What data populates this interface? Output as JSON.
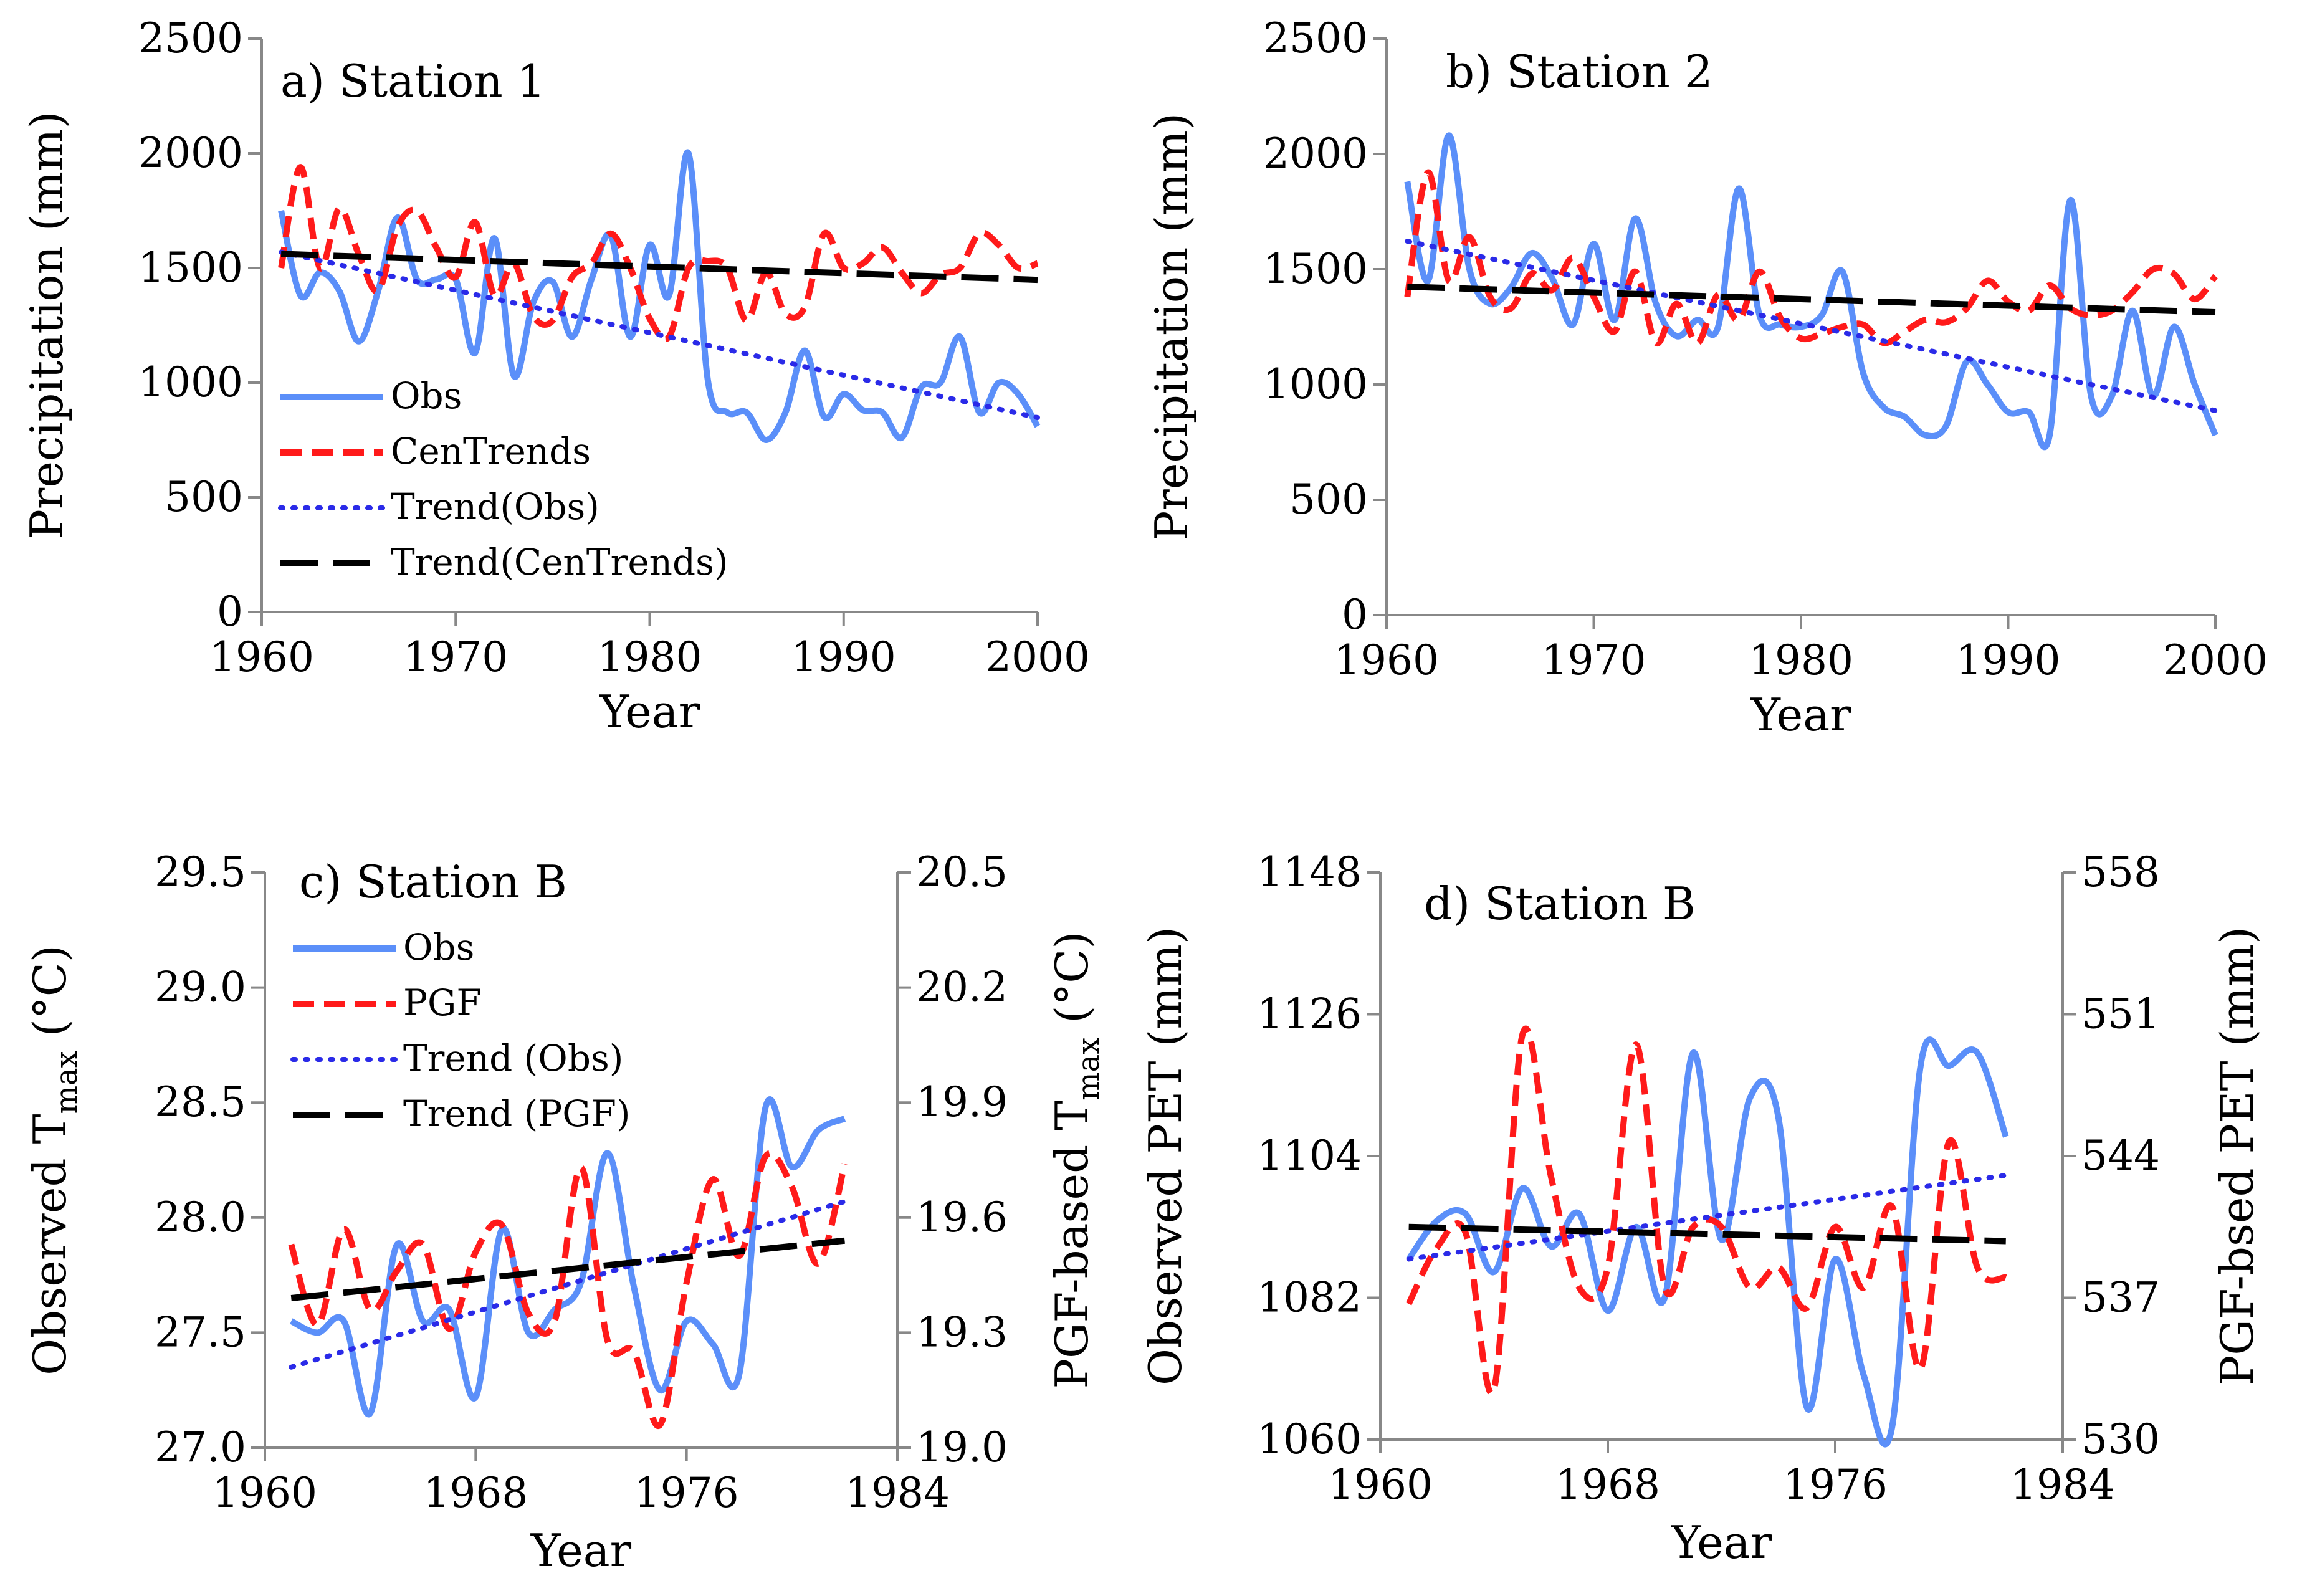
{
  "colors": {
    "obs": "#5b8ff9",
    "model": "#ff1a1a",
    "trend_obs": "#2a2ae8",
    "trend_model": "#000000"
  },
  "chart_data": [
    {
      "panel": "a",
      "type": "line",
      "title": "a)  Station 1",
      "xlabel": "Year",
      "ylabel": "Precipitation (mm)",
      "xlim": [
        1960,
        2000
      ],
      "ylim": [
        0,
        2500
      ],
      "xticks": [
        1960,
        1970,
        1980,
        1990,
        2000
      ],
      "yticks": [
        0,
        500,
        1000,
        1500,
        2000,
        2500
      ],
      "legend_position": "left-middle",
      "x": [
        1961,
        1962,
        1963,
        1964,
        1965,
        1966,
        1967,
        1968,
        1969,
        1970,
        1971,
        1972,
        1973,
        1974,
        1975,
        1976,
        1977,
        1978,
        1979,
        1980,
        1981,
        1982,
        1983,
        1984,
        1985,
        1986,
        1987,
        1988,
        1989,
        1990,
        1991,
        1992,
        1993,
        1994,
        1995,
        1996,
        1997,
        1998,
        1999,
        2000
      ],
      "series": [
        {
          "name": "Obs",
          "style": "solid",
          "color_key": "obs",
          "values": [
            1750,
            1380,
            1480,
            1400,
            1180,
            1400,
            1720,
            1450,
            1450,
            1450,
            1130,
            1630,
            1030,
            1350,
            1440,
            1200,
            1450,
            1640,
            1200,
            1600,
            1380,
            2000,
            1010,
            870,
            870,
            750,
            870,
            1140,
            850,
            950,
            880,
            870,
            760,
            980,
            1000,
            1200,
            870,
            1000,
            950,
            810
          ]
        },
        {
          "name": "CenTrends",
          "style": "dashed",
          "color_key": "model",
          "values": [
            1500,
            1940,
            1500,
            1760,
            1560,
            1400,
            1680,
            1750,
            1590,
            1460,
            1700,
            1380,
            1520,
            1290,
            1270,
            1460,
            1520,
            1650,
            1500,
            1280,
            1200,
            1500,
            1530,
            1500,
            1270,
            1480,
            1300,
            1330,
            1650,
            1500,
            1520,
            1590,
            1480,
            1390,
            1470,
            1500,
            1650,
            1600,
            1500,
            1520
          ]
        },
        {
          "name": "Trend(Obs)",
          "style": "dotted",
          "color_key": "trend_obs",
          "trend_of": "Obs"
        },
        {
          "name": "Trend(CenTrends)",
          "style": "longdash",
          "color_key": "trend_model",
          "trend_of": "CenTrends"
        }
      ]
    },
    {
      "panel": "b",
      "type": "line",
      "title": "b)  Station 2",
      "xlabel": "Year",
      "ylabel": "Precipitation (mm)",
      "xlim": [
        1960,
        2000
      ],
      "ylim": [
        0,
        2500
      ],
      "xticks": [
        1960,
        1970,
        1980,
        1990,
        2000
      ],
      "yticks": [
        0,
        500,
        1000,
        1500,
        2000,
        2500
      ],
      "x": [
        1961,
        1962,
        1963,
        1964,
        1965,
        1966,
        1967,
        1968,
        1969,
        1970,
        1971,
        1972,
        1973,
        1974,
        1975,
        1976,
        1977,
        1978,
        1979,
        1980,
        1981,
        1982,
        1983,
        1984,
        1985,
        1986,
        1987,
        1988,
        1989,
        1990,
        1991,
        1992,
        1993,
        1994,
        1995,
        1996,
        1997,
        1998,
        1999,
        2000
      ],
      "series": [
        {
          "name": "Obs",
          "style": "solid",
          "color_key": "obs",
          "values": [
            1880,
            1450,
            2080,
            1500,
            1350,
            1420,
            1570,
            1460,
            1260,
            1610,
            1280,
            1720,
            1350,
            1210,
            1280,
            1250,
            1850,
            1300,
            1260,
            1250,
            1300,
            1490,
            1050,
            900,
            860,
            780,
            820,
            1100,
            1000,
            880,
            880,
            780,
            1800,
            950,
            950,
            1320,
            950,
            1250,
            1000,
            780
          ]
        },
        {
          "name": "CenTrends",
          "style": "dashed",
          "color_key": "model",
          "values": [
            1380,
            1920,
            1450,
            1640,
            1380,
            1330,
            1480,
            1410,
            1550,
            1380,
            1230,
            1490,
            1180,
            1350,
            1180,
            1390,
            1280,
            1490,
            1290,
            1200,
            1220,
            1250,
            1260,
            1180,
            1230,
            1280,
            1270,
            1330,
            1450,
            1360,
            1320,
            1430,
            1330,
            1300,
            1320,
            1400,
            1500,
            1480,
            1370,
            1470
          ]
        },
        {
          "name": "Trend(Obs)",
          "style": "dotted",
          "color_key": "trend_obs",
          "trend_of": "Obs"
        },
        {
          "name": "Trend(CenTrends)",
          "style": "longdash",
          "color_key": "trend_model",
          "trend_of": "CenTrends"
        }
      ]
    },
    {
      "panel": "c",
      "type": "line",
      "title": "c) Station B",
      "xlabel": "Year",
      "ylabel": "Observed T",
      "ylabel_sub": "max",
      "ylabel_unit": "(°C)",
      "y2label": "PGF-based T",
      "y2label_sub": "max",
      "y2label_unit": "(°C)",
      "xlim": [
        1960,
        1984
      ],
      "ylim": [
        27.0,
        29.5
      ],
      "y2lim": [
        19.0,
        20.5
      ],
      "xticks": [
        1960,
        1968,
        1976,
        1984
      ],
      "yticks": [
        "27.0",
        "27.5",
        "28.0",
        "28.5",
        "29.0",
        "29.5"
      ],
      "y2ticks": [
        "19.0",
        "19.3",
        "19.6",
        "19.9",
        "20.2",
        "20.5"
      ],
      "legend_position": "top-left",
      "x": [
        1961,
        1962,
        1963,
        1964,
        1965,
        1966,
        1967,
        1968,
        1969,
        1970,
        1971,
        1972,
        1973,
        1974,
        1975,
        1976,
        1977,
        1978,
        1979,
        1980,
        1981,
        1982
      ],
      "series": [
        {
          "name": "Obs",
          "style": "solid",
          "color_key": "obs",
          "axis": "left",
          "values": [
            27.55,
            27.5,
            27.55,
            27.15,
            27.88,
            27.55,
            27.6,
            27.22,
            27.95,
            27.5,
            27.6,
            27.72,
            28.28,
            27.7,
            27.25,
            27.55,
            27.45,
            27.32,
            28.48,
            28.22,
            28.38,
            28.43
          ]
        },
        {
          "name": "PGF",
          "style": "dashed",
          "color_key": "model",
          "axis": "right",
          "values": [
            19.53,
            19.32,
            19.57,
            19.36,
            19.46,
            19.53,
            19.31,
            19.51,
            19.58,
            19.35,
            19.33,
            19.73,
            19.28,
            19.25,
            19.06,
            19.43,
            19.7,
            19.5,
            19.76,
            19.68,
            19.48,
            19.74
          ]
        },
        {
          "name": "Trend (Obs)",
          "style": "dotted",
          "color_key": "trend_obs",
          "axis": "left",
          "from": 27.35,
          "to": 28.07
        },
        {
          "name": "Trend (PGF)",
          "style": "longdash",
          "color_key": "trend_model",
          "axis": "right",
          "from": 19.39,
          "to": 19.54
        }
      ]
    },
    {
      "panel": "d",
      "type": "line",
      "title": "d)  Station B",
      "xlabel": "Year",
      "ylabel": "Observed PET (mm)",
      "y2label": "PGF-bsed PET (mm)",
      "xlim": [
        1960,
        1984
      ],
      "ylim": [
        1060,
        1148
      ],
      "y2lim": [
        530,
        558
      ],
      "xticks": [
        1960,
        1968,
        1976,
        1984
      ],
      "yticks": [
        1060,
        1082,
        1104,
        1126,
        1148
      ],
      "y2ticks": [
        530,
        537,
        544,
        551,
        558
      ],
      "x": [
        1961,
        1962,
        1963,
        1964,
        1965,
        1966,
        1967,
        1968,
        1969,
        1970,
        1971,
        1972,
        1973,
        1974,
        1975,
        1976,
        1977,
        1978,
        1979,
        1980,
        1981,
        1982
      ],
      "series": [
        {
          "name": "Obs",
          "style": "solid",
          "color_key": "obs",
          "axis": "left",
          "values": [
            1088,
            1094,
            1095,
            1086,
            1099,
            1090,
            1095,
            1080,
            1093,
            1082,
            1120,
            1091,
            1113,
            1110,
            1065,
            1088,
            1070,
            1062,
            1118,
            1118,
            1120,
            1107
          ]
        },
        {
          "name": "PGF",
          "style": "dashed",
          "color_key": "model",
          "axis": "right",
          "values": [
            536.7,
            539.5,
            540.2,
            532.5,
            550.0,
            543.0,
            537.5,
            538.5,
            549.5,
            537.5,
            540.5,
            540.5,
            537.5,
            538.5,
            536.5,
            540.5,
            537.5,
            541.5,
            533.5,
            544.7,
            538.5,
            538.0
          ]
        },
        {
          "name": "Trend (Obs)",
          "style": "dotted",
          "color_key": "trend_obs",
          "axis": "left",
          "from": 1088,
          "to": 1101
        },
        {
          "name": "Trend (PGF)",
          "style": "longdash",
          "color_key": "trend_model",
          "axis": "right",
          "from": 540.5,
          "to": 539.8
        }
      ]
    }
  ]
}
